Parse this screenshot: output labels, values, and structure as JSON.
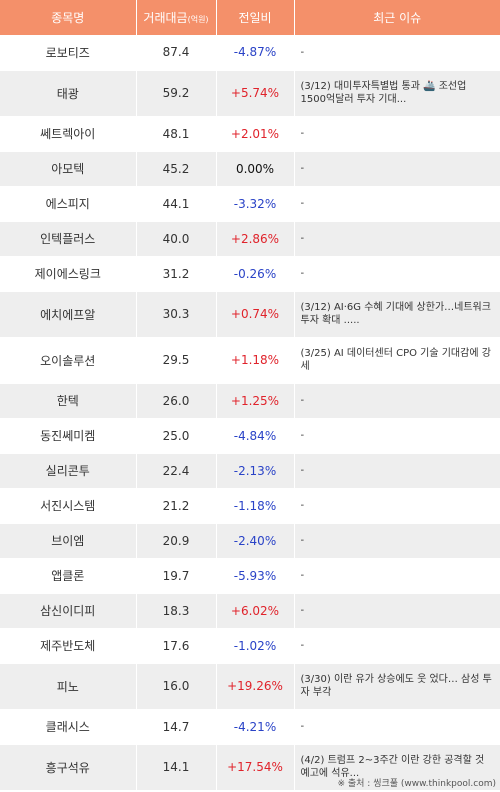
{
  "headers": {
    "name": "종목명",
    "volume": "거래대금",
    "volume_unit": "(억원)",
    "change": "전일비",
    "issue": "최근 이슈"
  },
  "rows": [
    {
      "name": "로보티즈",
      "volume": "87.4",
      "change": "-4.87%",
      "dir": "down",
      "issue": "-"
    },
    {
      "name": "태광",
      "volume": "59.2",
      "change": "+5.74%",
      "dir": "up",
      "issue": "(3/12) 대미투자특별법 통과 🚢 조선업 1500억달러 투자 기대..."
    },
    {
      "name": "쎄트렉아이",
      "volume": "48.1",
      "change": "+2.01%",
      "dir": "up",
      "issue": "-"
    },
    {
      "name": "아모텍",
      "volume": "45.2",
      "change": "0.00%",
      "dir": "flat",
      "issue": "-"
    },
    {
      "name": "에스피지",
      "volume": "44.1",
      "change": "-3.32%",
      "dir": "down",
      "issue": "-"
    },
    {
      "name": "인텍플러스",
      "volume": "40.0",
      "change": "+2.86%",
      "dir": "up",
      "issue": "-"
    },
    {
      "name": "제이에스링크",
      "volume": "31.2",
      "change": "-0.26%",
      "dir": "down",
      "issue": "-"
    },
    {
      "name": "에치에프알",
      "volume": "30.3",
      "change": "+0.74%",
      "dir": "up",
      "issue": "(3/12) AI·6G 수혜 기대에 상한가…네트워크 투자 확대 ....."
    },
    {
      "name": "오이솔루션",
      "volume": "29.5",
      "change": "+1.18%",
      "dir": "up",
      "issue": "(3/25) AI 데이터센터 CPO 기술 기대감에 강세"
    },
    {
      "name": "한텍",
      "volume": "26.0",
      "change": "+1.25%",
      "dir": "up",
      "issue": "-"
    },
    {
      "name": "동진쎄미켐",
      "volume": "25.0",
      "change": "-4.84%",
      "dir": "down",
      "issue": "-"
    },
    {
      "name": "실리콘투",
      "volume": "22.4",
      "change": "-2.13%",
      "dir": "down",
      "issue": "-"
    },
    {
      "name": "서진시스템",
      "volume": "21.2",
      "change": "-1.18%",
      "dir": "down",
      "issue": "-"
    },
    {
      "name": "브이엠",
      "volume": "20.9",
      "change": "-2.40%",
      "dir": "down",
      "issue": "-"
    },
    {
      "name": "앱클론",
      "volume": "19.7",
      "change": "-5.93%",
      "dir": "down",
      "issue": "-"
    },
    {
      "name": "삼신이디피",
      "volume": "18.3",
      "change": "+6.02%",
      "dir": "up",
      "issue": "-"
    },
    {
      "name": "제주반도체",
      "volume": "17.6",
      "change": "-1.02%",
      "dir": "down",
      "issue": "-"
    },
    {
      "name": "피노",
      "volume": "16.0",
      "change": "+19.26%",
      "dir": "up",
      "issue": "(3/30) 이란 유가 상승에도 웃 었다… 삼성 투자 부각"
    },
    {
      "name": "클래시스",
      "volume": "14.7",
      "change": "-4.21%",
      "dir": "down",
      "issue": "-"
    },
    {
      "name": "흥구석유",
      "volume": "14.1",
      "change": "+17.54%",
      "dir": "up",
      "issue": "(4/2) 트럼프 2~3주간 이란 강한 공격할 것 예고에 석유..."
    }
  ],
  "footer": "※ 출처 : 씽크풀 (www.thinkpool.com)",
  "colors": {
    "header_bg": "#f4906a",
    "up": "#e0232b",
    "down": "#2a43c7",
    "stripe": "#eeeeee"
  }
}
